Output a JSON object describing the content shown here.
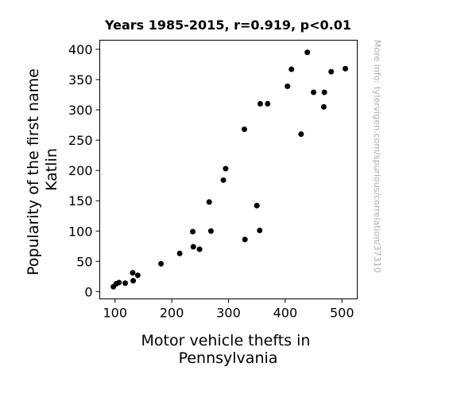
{
  "chart_data": {
    "type": "scatter",
    "title": "Years 1985-2015, r=0.919, p<0.01",
    "xlabel": [
      "Motor vehicle thefts in",
      "Pennsylvania"
    ],
    "ylabel": [
      "Popularity of the first name",
      "Katlin"
    ],
    "side_note": "More info: tylervigen.com/spurious/correlation/37310",
    "xlim": [
      73,
      527
    ],
    "ylim": [
      -12,
      415
    ],
    "xticks": [
      100,
      200,
      300,
      400,
      500
    ],
    "yticks": [
      0,
      50,
      100,
      150,
      200,
      250,
      300,
      350,
      400
    ],
    "grid": false,
    "point_color": "#000000",
    "points": [
      {
        "x": 97,
        "y": 8
      },
      {
        "x": 102,
        "y": 13
      },
      {
        "x": 107,
        "y": 15
      },
      {
        "x": 118,
        "y": 14
      },
      {
        "x": 131,
        "y": 31
      },
      {
        "x": 132,
        "y": 18
      },
      {
        "x": 140,
        "y": 27
      },
      {
        "x": 181,
        "y": 46
      },
      {
        "x": 214,
        "y": 63
      },
      {
        "x": 237,
        "y": 99
      },
      {
        "x": 238,
        "y": 74
      },
      {
        "x": 249,
        "y": 70
      },
      {
        "x": 266,
        "y": 148
      },
      {
        "x": 269,
        "y": 100
      },
      {
        "x": 291,
        "y": 184
      },
      {
        "x": 295,
        "y": 203
      },
      {
        "x": 328,
        "y": 268
      },
      {
        "x": 329,
        "y": 86
      },
      {
        "x": 350,
        "y": 142
      },
      {
        "x": 355,
        "y": 101
      },
      {
        "x": 356,
        "y": 310
      },
      {
        "x": 369,
        "y": 310
      },
      {
        "x": 404,
        "y": 339
      },
      {
        "x": 411,
        "y": 367
      },
      {
        "x": 428,
        "y": 260
      },
      {
        "x": 439,
        "y": 395
      },
      {
        "x": 450,
        "y": 329
      },
      {
        "x": 468,
        "y": 305
      },
      {
        "x": 469,
        "y": 329
      },
      {
        "x": 481,
        "y": 363
      },
      {
        "x": 506,
        "y": 368
      }
    ]
  }
}
